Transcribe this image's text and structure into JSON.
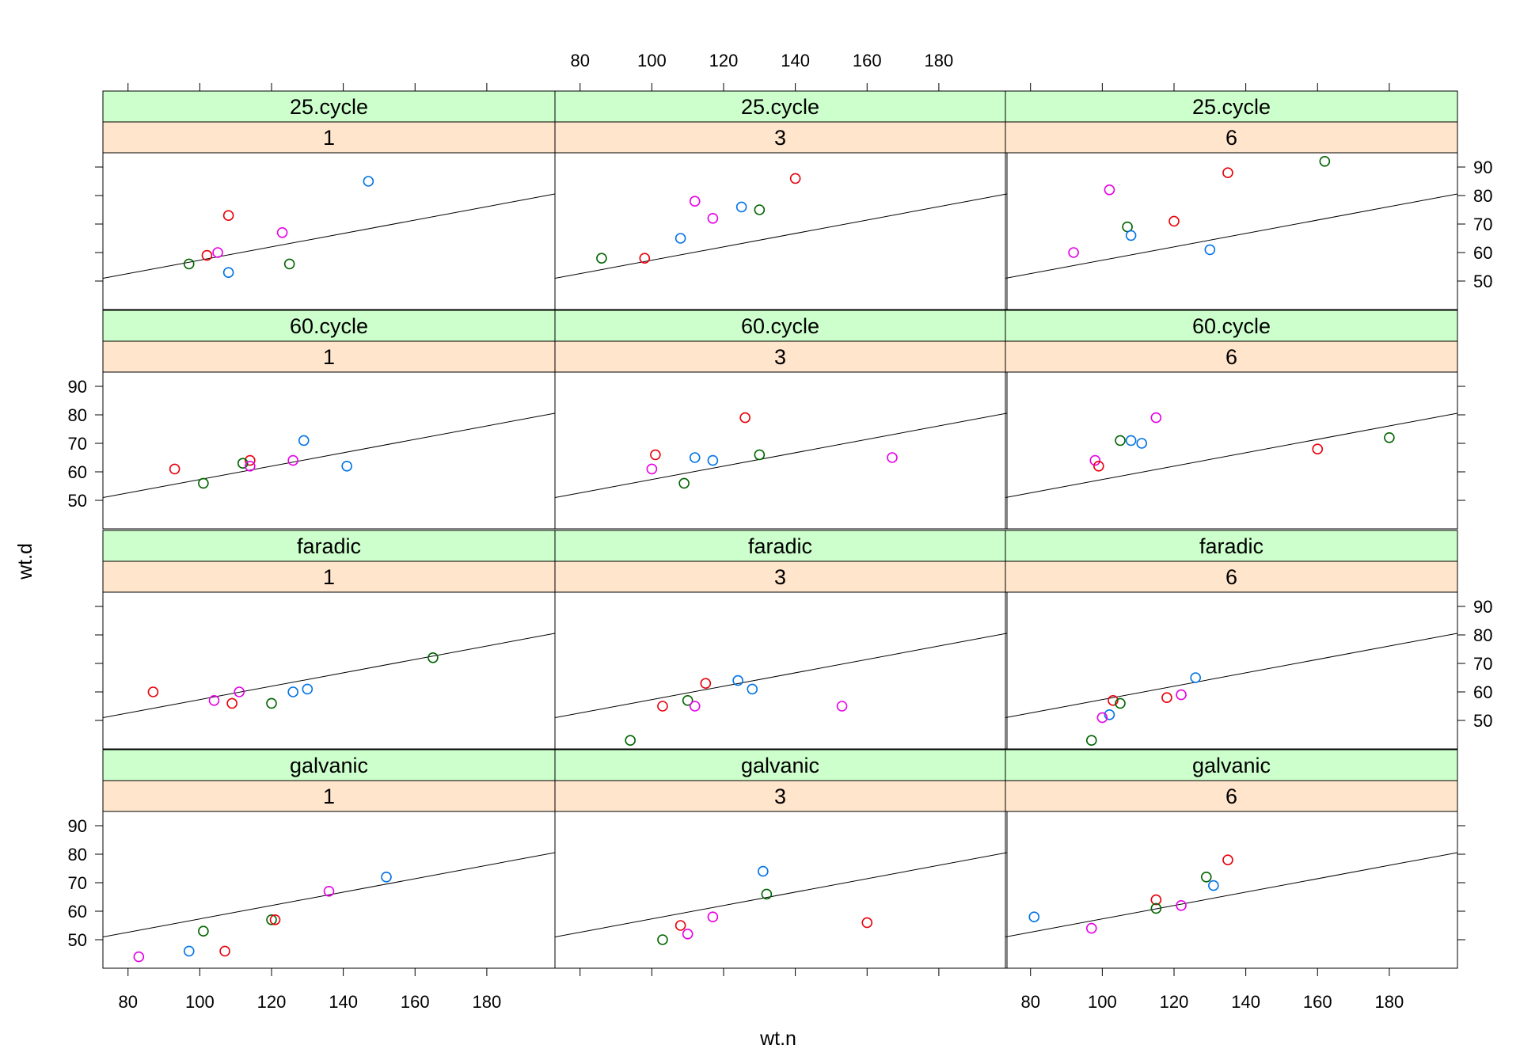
{
  "chart_data": {
    "type": "scatter",
    "title": "",
    "xlabel": "wt.n",
    "ylabel": "wt.d",
    "xlim": [
      73,
      199
    ],
    "ylim": [
      40,
      95
    ],
    "x_ticks": [
      80,
      100,
      120,
      140,
      160,
      180
    ],
    "y_ticks": [
      50,
      60,
      70,
      80,
      90
    ],
    "x_tick_labels": [
      "80",
      "100",
      "120",
      "140",
      "160",
      "180"
    ],
    "y_tick_labels": [
      "50",
      "60",
      "70",
      "80",
      "90"
    ],
    "strip_labels": {
      "rows": [
        "25.cycle",
        "60.cycle",
        "faradic",
        "galvanic"
      ],
      "cols": [
        "1",
        "3",
        "6"
      ]
    },
    "reference_line": {
      "intercept": 33.8,
      "slope": 0.235
    },
    "group_colors": {
      "red": "#e8000b",
      "blue": "#0073e6",
      "green": "#006400",
      "magenta": "#e600e6"
    },
    "panels": [
      {
        "row": 0,
        "col": 0,
        "points": [
          {
            "x": 147,
            "y": 85,
            "g": "blue"
          },
          {
            "x": 108,
            "y": 73,
            "g": "red"
          },
          {
            "x": 123,
            "y": 67,
            "g": "magenta"
          },
          {
            "x": 102,
            "y": 59,
            "g": "red"
          },
          {
            "x": 105,
            "y": 60,
            "g": "magenta"
          },
          {
            "x": 97,
            "y": 56,
            "g": "green"
          },
          {
            "x": 125,
            "y": 56,
            "g": "green"
          },
          {
            "x": 108,
            "y": 53,
            "g": "blue"
          }
        ]
      },
      {
        "row": 0,
        "col": 1,
        "points": [
          {
            "x": 140,
            "y": 86,
            "g": "red"
          },
          {
            "x": 112,
            "y": 78,
            "g": "magenta"
          },
          {
            "x": 125,
            "y": 76,
            "g": "blue"
          },
          {
            "x": 130,
            "y": 75,
            "g": "green"
          },
          {
            "x": 117,
            "y": 72,
            "g": "magenta"
          },
          {
            "x": 108,
            "y": 65,
            "g": "blue"
          },
          {
            "x": 86,
            "y": 58,
            "g": "green"
          },
          {
            "x": 98,
            "y": 58,
            "g": "red"
          }
        ]
      },
      {
        "row": 0,
        "col": 2,
        "points": [
          {
            "x": 162,
            "y": 92,
            "g": "green"
          },
          {
            "x": 135,
            "y": 88,
            "g": "red"
          },
          {
            "x": 102,
            "y": 82,
            "g": "magenta"
          },
          {
            "x": 120,
            "y": 71,
            "g": "red"
          },
          {
            "x": 107,
            "y": 69,
            "g": "green"
          },
          {
            "x": 108,
            "y": 66,
            "g": "blue"
          },
          {
            "x": 130,
            "y": 61,
            "g": "blue"
          },
          {
            "x": 92,
            "y": 60,
            "g": "magenta"
          }
        ]
      },
      {
        "row": 1,
        "col": 0,
        "points": [
          {
            "x": 129,
            "y": 71,
            "g": "blue"
          },
          {
            "x": 114,
            "y": 64,
            "g": "red"
          },
          {
            "x": 126,
            "y": 64,
            "g": "magenta"
          },
          {
            "x": 112,
            "y": 63,
            "g": "green"
          },
          {
            "x": 114,
            "y": 62,
            "g": "magenta"
          },
          {
            "x": 141,
            "y": 62,
            "g": "blue"
          },
          {
            "x": 93,
            "y": 61,
            "g": "red"
          },
          {
            "x": 101,
            "y": 56,
            "g": "green"
          }
        ]
      },
      {
        "row": 1,
        "col": 1,
        "points": [
          {
            "x": 126,
            "y": 79,
            "g": "red"
          },
          {
            "x": 101,
            "y": 66,
            "g": "red"
          },
          {
            "x": 130,
            "y": 66,
            "g": "green"
          },
          {
            "x": 112,
            "y": 65,
            "g": "blue"
          },
          {
            "x": 167,
            "y": 65,
            "g": "magenta"
          },
          {
            "x": 117,
            "y": 64,
            "g": "blue"
          },
          {
            "x": 100,
            "y": 61,
            "g": "magenta"
          },
          {
            "x": 109,
            "y": 56,
            "g": "green"
          }
        ]
      },
      {
        "row": 1,
        "col": 2,
        "points": [
          {
            "x": 115,
            "y": 79,
            "g": "magenta"
          },
          {
            "x": 180,
            "y": 72,
            "g": "green"
          },
          {
            "x": 105,
            "y": 71,
            "g": "green"
          },
          {
            "x": 108,
            "y": 71,
            "g": "blue"
          },
          {
            "x": 111,
            "y": 70,
            "g": "blue"
          },
          {
            "x": 160,
            "y": 68,
            "g": "red"
          },
          {
            "x": 98,
            "y": 64,
            "g": "magenta"
          },
          {
            "x": 99,
            "y": 62,
            "g": "red"
          }
        ]
      },
      {
        "row": 2,
        "col": 0,
        "points": [
          {
            "x": 165,
            "y": 72,
            "g": "green"
          },
          {
            "x": 130,
            "y": 61,
            "g": "blue"
          },
          {
            "x": 87,
            "y": 60,
            "g": "red"
          },
          {
            "x": 111,
            "y": 60,
            "g": "magenta"
          },
          {
            "x": 126,
            "y": 60,
            "g": "blue"
          },
          {
            "x": 104,
            "y": 57,
            "g": "magenta"
          },
          {
            "x": 109,
            "y": 56,
            "g": "red"
          },
          {
            "x": 120,
            "y": 56,
            "g": "green"
          }
        ]
      },
      {
        "row": 2,
        "col": 1,
        "points": [
          {
            "x": 124,
            "y": 64,
            "g": "blue"
          },
          {
            "x": 115,
            "y": 63,
            "g": "red"
          },
          {
            "x": 128,
            "y": 61,
            "g": "blue"
          },
          {
            "x": 110,
            "y": 57,
            "g": "green"
          },
          {
            "x": 103,
            "y": 55,
            "g": "red"
          },
          {
            "x": 112,
            "y": 55,
            "g": "magenta"
          },
          {
            "x": 153,
            "y": 55,
            "g": "magenta"
          },
          {
            "x": 94,
            "y": 43,
            "g": "green"
          }
        ]
      },
      {
        "row": 2,
        "col": 2,
        "points": [
          {
            "x": 126,
            "y": 65,
            "g": "blue"
          },
          {
            "x": 122,
            "y": 59,
            "g": "magenta"
          },
          {
            "x": 118,
            "y": 58,
            "g": "red"
          },
          {
            "x": 103,
            "y": 57,
            "g": "red"
          },
          {
            "x": 105,
            "y": 56,
            "g": "green"
          },
          {
            "x": 102,
            "y": 52,
            "g": "blue"
          },
          {
            "x": 100,
            "y": 51,
            "g": "magenta"
          },
          {
            "x": 97,
            "y": 43,
            "g": "green"
          }
        ]
      },
      {
        "row": 3,
        "col": 0,
        "points": [
          {
            "x": 152,
            "y": 72,
            "g": "blue"
          },
          {
            "x": 136,
            "y": 67,
            "g": "magenta"
          },
          {
            "x": 120,
            "y": 57,
            "g": "green"
          },
          {
            "x": 121,
            "y": 57,
            "g": "red"
          },
          {
            "x": 101,
            "y": 53,
            "g": "green"
          },
          {
            "x": 97,
            "y": 46,
            "g": "blue"
          },
          {
            "x": 107,
            "y": 46,
            "g": "red"
          },
          {
            "x": 83,
            "y": 44,
            "g": "magenta"
          }
        ]
      },
      {
        "row": 3,
        "col": 1,
        "points": [
          {
            "x": 131,
            "y": 74,
            "g": "blue"
          },
          {
            "x": 132,
            "y": 66,
            "g": "green"
          },
          {
            "x": 117,
            "y": 58,
            "g": "magenta"
          },
          {
            "x": 160,
            "y": 56,
            "g": "red"
          },
          {
            "x": 108,
            "y": 55,
            "g": "red"
          },
          {
            "x": 110,
            "y": 52,
            "g": "magenta"
          },
          {
            "x": 103,
            "y": 50,
            "g": "green"
          }
        ]
      },
      {
        "row": 3,
        "col": 2,
        "points": [
          {
            "x": 135,
            "y": 78,
            "g": "red"
          },
          {
            "x": 129,
            "y": 72,
            "g": "green"
          },
          {
            "x": 131,
            "y": 69,
            "g": "blue"
          },
          {
            "x": 115,
            "y": 64,
            "g": "red"
          },
          {
            "x": 122,
            "y": 62,
            "g": "magenta"
          },
          {
            "x": 115,
            "y": 61,
            "g": "green"
          },
          {
            "x": 81,
            "y": 58,
            "g": "blue"
          },
          {
            "x": 97,
            "y": 54,
            "g": "magenta"
          }
        ]
      }
    ]
  }
}
